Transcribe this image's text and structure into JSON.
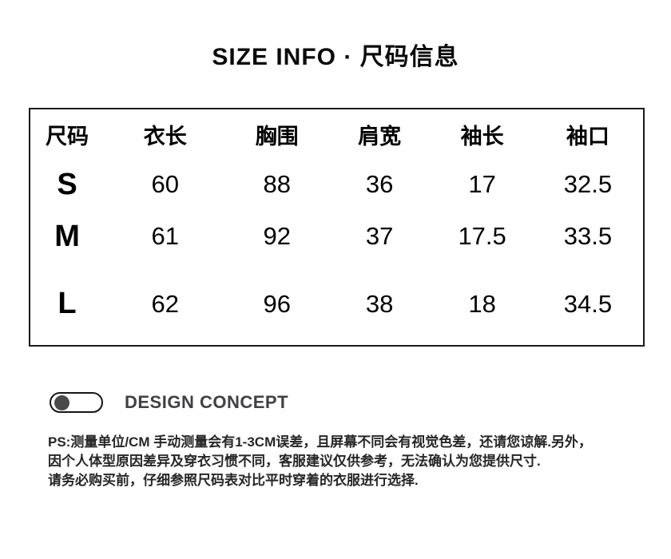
{
  "title": "SIZE INFO · 尺码信息",
  "size_table": {
    "headers": [
      "尺码",
      "衣长",
      "胸围",
      "肩宽",
      "袖长",
      "袖口"
    ],
    "rows": [
      {
        "size": "S",
        "values": [
          "60",
          "88",
          "36",
          "17",
          "32.5"
        ]
      },
      {
        "size": "M",
        "values": [
          "61",
          "92",
          "37",
          "17.5",
          "33.5"
        ]
      },
      {
        "size": "L",
        "values": [
          "62",
          "96",
          "38",
          "18",
          "34.5"
        ]
      }
    ]
  },
  "design_concept": {
    "label": "DESIGN CONCEPT"
  },
  "notes": {
    "line1": "PS:测量单位/CM 手动测量会有1-3CM误差，且屏幕不同会有视觉色差，还请您谅解.另外，",
    "line2": "因个人体型原因差异及穿衣习惯不同，客服建议仅供参考，无法确认为您提供尺寸.",
    "line3": "请务必购买前，仔细参照尺码表对比平时穿着的衣服进行选择."
  },
  "colors": {
    "text": "#000000",
    "concept_text": "#404045",
    "note_text": "#262626",
    "table_border": "#1a1a1a",
    "toggle_dot": "#4a4a4a"
  }
}
